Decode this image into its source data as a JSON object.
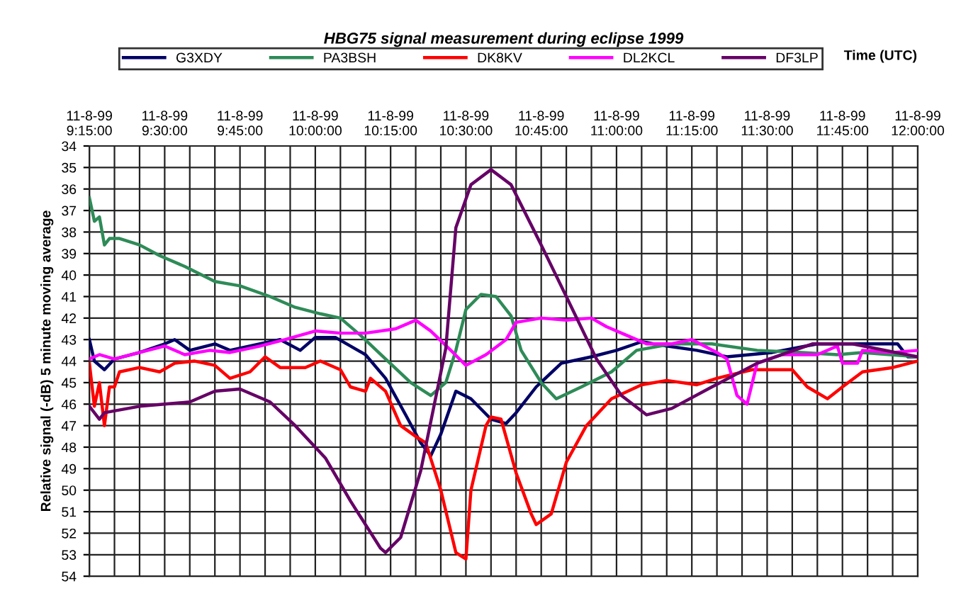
{
  "chart_data": {
    "type": "line",
    "title": "HBG75 signal measurement during eclipse 1999",
    "xlabel": "Time (UTC)",
    "ylabel": "Relative signal (-dB) 5 minute moving average",
    "xlim": [
      "1999-08-11T09:15",
      "1999-08-11T12:00"
    ],
    "ylim": [
      54,
      34
    ],
    "xticks": [
      {
        "value": "1999-08-11T09:15",
        "label": "11-8-99\n9:15:00"
      },
      {
        "value": "1999-08-11T09:20",
        "label": null
      },
      {
        "value": "1999-08-11T09:25",
        "label": null
      },
      {
        "value": "1999-08-11T09:30",
        "label": "11-8-99\n9:30:00"
      },
      {
        "value": "1999-08-11T09:35",
        "label": null
      },
      {
        "value": "1999-08-11T09:40",
        "label": null
      },
      {
        "value": "1999-08-11T09:45",
        "label": "11-8-99\n9:45:00"
      },
      {
        "value": "1999-08-11T09:50",
        "label": null
      },
      {
        "value": "1999-08-11T09:55",
        "label": null
      },
      {
        "value": "1999-08-11T10:00",
        "label": "11-8-99\n10:00:00"
      },
      {
        "value": "1999-08-11T10:05",
        "label": null
      },
      {
        "value": "1999-08-11T10:10",
        "label": null
      },
      {
        "value": "1999-08-11T10:15",
        "label": "11-8-99\n10:15:00"
      },
      {
        "value": "1999-08-11T10:20",
        "label": null
      },
      {
        "value": "1999-08-11T10:25",
        "label": null
      },
      {
        "value": "1999-08-11T10:30",
        "label": "11-8-99\n10:30:00"
      },
      {
        "value": "1999-08-11T10:35",
        "label": null
      },
      {
        "value": "1999-08-11T10:40",
        "label": null
      },
      {
        "value": "1999-08-11T10:45",
        "label": "11-8-99\n10:45:00"
      },
      {
        "value": "1999-08-11T10:50",
        "label": null
      },
      {
        "value": "1999-08-11T10:55",
        "label": null
      },
      {
        "value": "1999-08-11T11:00",
        "label": "11-8-99\n11:00:00"
      },
      {
        "value": "1999-08-11T11:05",
        "label": null
      },
      {
        "value": "1999-08-11T11:10",
        "label": null
      },
      {
        "value": "1999-08-11T11:15",
        "label": "11-8-99\n11:15:00"
      },
      {
        "value": "1999-08-11T11:20",
        "label": null
      },
      {
        "value": "1999-08-11T11:25",
        "label": null
      },
      {
        "value": "1999-08-11T11:30",
        "label": "11-8-99\n11:30:00"
      },
      {
        "value": "1999-08-11T11:35",
        "label": null
      },
      {
        "value": "1999-08-11T11:40",
        "label": null
      },
      {
        "value": "1999-08-11T11:45",
        "label": "11-8-99\n11:45:00"
      },
      {
        "value": "1999-08-11T11:50",
        "label": null
      },
      {
        "value": "1999-08-11T11:55",
        "label": null
      },
      {
        "value": "1999-08-11T12:00",
        "label": "11-8-99\n12:00:00"
      }
    ],
    "yticks": [
      34,
      35,
      36,
      37,
      38,
      39,
      40,
      41,
      42,
      43,
      44,
      45,
      46,
      47,
      48,
      49,
      50,
      51,
      52,
      53,
      54
    ],
    "grid": true,
    "legend": "top",
    "marker": "none",
    "line_style": "solid",
    "series": [
      {
        "name": "G3XDY",
        "color": "#000066",
        "x": [
          "1999-08-11T09:15",
          "1999-08-11T09:16",
          "1999-08-11T09:18",
          "1999-08-11T09:20",
          "1999-08-11T09:25",
          "1999-08-11T09:30",
          "1999-08-11T09:32",
          "1999-08-11T09:35",
          "1999-08-11T09:40",
          "1999-08-11T09:43",
          "1999-08-11T09:49",
          "1999-08-11T09:53",
          "1999-08-11T09:57",
          "1999-08-11T10:00",
          "1999-08-11T10:04",
          "1999-08-11T10:10",
          "1999-08-11T10:14",
          "1999-08-11T10:18",
          "1999-08-11T10:21",
          "1999-08-11T10:23",
          "1999-08-11T10:25",
          "1999-08-11T10:28",
          "1999-08-11T10:31",
          "1999-08-11T10:35",
          "1999-08-11T10:38",
          "1999-08-11T10:40",
          "1999-08-11T10:44",
          "1999-08-11T10:49",
          "1999-08-11T10:55",
          "1999-08-11T11:00",
          "1999-08-11T11:05",
          "1999-08-11T11:10",
          "1999-08-11T11:16",
          "1999-08-11T11:22",
          "1999-08-11T11:31",
          "1999-08-11T11:40",
          "1999-08-11T11:49",
          "1999-08-11T11:56",
          "1999-08-11T11:58",
          "1999-08-11T12:00"
        ],
        "values": [
          43,
          44,
          44.4,
          43.9,
          43.6,
          43.2,
          43.0,
          43.5,
          43.2,
          43.5,
          43.2,
          43.0,
          43.5,
          42.9,
          42.9,
          43.7,
          44.8,
          46.5,
          47.8,
          48.4,
          47.4,
          45.4,
          45.75,
          46.7,
          46.9,
          46.4,
          45.2,
          44.1,
          43.8,
          43.5,
          43.1,
          43.3,
          43.5,
          43.8,
          43.6,
          43.2,
          43.2,
          43.2,
          43.8,
          43.8
        ]
      },
      {
        "name": "PA3BSH",
        "color": "#2e8b57",
        "x": [
          "1999-08-11T09:15",
          "1999-08-11T09:16",
          "1999-08-11T09:17",
          "1999-08-11T09:18",
          "1999-08-11T09:19",
          "1999-08-11T09:21",
          "1999-08-11T09:25",
          "1999-08-11T09:29",
          "1999-08-11T09:34",
          "1999-08-11T09:40",
          "1999-08-11T09:45",
          "1999-08-11T09:51",
          "1999-08-11T09:56",
          "1999-08-11T10:01",
          "1999-08-11T10:05",
          "1999-08-11T10:09",
          "1999-08-11T10:14",
          "1999-08-11T10:19",
          "1999-08-11T10:23",
          "1999-08-11T10:26",
          "1999-08-11T10:28",
          "1999-08-11T10:30",
          "1999-08-11T10:33",
          "1999-08-11T10:36",
          "1999-08-11T10:39",
          "1999-08-11T10:41",
          "1999-08-11T10:45",
          "1999-08-11T10:48",
          "1999-08-11T10:53",
          "1999-08-11T10:59",
          "1999-08-11T11:04",
          "1999-08-11T11:11",
          "1999-08-11T11:19",
          "1999-08-11T11:28",
          "1999-08-11T11:37",
          "1999-08-11T11:44",
          "1999-08-11T11:49",
          "1999-08-11T12:00"
        ],
        "values": [
          36.4,
          37.5,
          37.3,
          38.6,
          38.3,
          38.3,
          38.6,
          39.1,
          39.6,
          40.3,
          40.5,
          41.0,
          41.5,
          41.8,
          42.0,
          42.8,
          43.9,
          45.0,
          45.6,
          45.0,
          43.5,
          41.6,
          40.9,
          41.0,
          41.9,
          43.5,
          45.0,
          45.75,
          45.2,
          44.5,
          43.5,
          43.2,
          43.2,
          43.5,
          43.6,
          43.7,
          43.6,
          43.8
        ]
      },
      {
        "name": "DK8KV",
        "color": "#ff0000",
        "x": [
          "1999-08-11T09:15",
          "1999-08-11T09:16",
          "1999-08-11T09:17",
          "1999-08-11T09:18",
          "1999-08-11T09:19",
          "1999-08-11T09:20",
          "1999-08-11T09:21",
          "1999-08-11T09:25",
          "1999-08-11T09:29",
          "1999-08-11T09:32",
          "1999-08-11T09:36",
          "1999-08-11T09:40",
          "1999-08-11T09:43",
          "1999-08-11T09:47",
          "1999-08-11T09:50",
          "1999-08-11T09:53",
          "1999-08-11T09:58",
          "1999-08-11T10:01",
          "1999-08-11T10:05",
          "1999-08-11T10:07",
          "1999-08-11T10:10",
          "1999-08-11T10:11",
          "1999-08-11T10:14",
          "1999-08-11T10:17",
          "1999-08-11T10:20",
          "1999-08-11T10:22",
          "1999-08-11T10:25",
          "1999-08-11T10:28",
          "1999-08-11T10:30",
          "1999-08-11T10:31",
          "1999-08-11T10:34",
          "1999-08-11T10:35",
          "1999-08-11T10:37",
          "1999-08-11T10:40",
          "1999-08-11T10:43",
          "1999-08-11T10:44",
          "1999-08-11T10:47",
          "1999-08-11T10:50",
          "1999-08-11T10:54",
          "1999-08-11T10:59",
          "1999-08-11T11:05",
          "1999-08-11T11:10",
          "1999-08-11T11:16",
          "1999-08-11T11:20",
          "1999-08-11T11:27",
          "1999-08-11T11:35",
          "1999-08-11T11:38",
          "1999-08-11T11:42",
          "1999-08-11T11:45",
          "1999-08-11T11:49",
          "1999-08-11T11:55",
          "1999-08-11T12:00"
        ],
        "values": [
          44.1,
          46.1,
          45.0,
          47,
          45.2,
          45.2,
          44.5,
          44.3,
          44.5,
          44.1,
          44.0,
          44.2,
          44.8,
          44.5,
          43.8,
          44.3,
          44.3,
          44.0,
          44.4,
          45.2,
          45.4,
          44.8,
          45.4,
          47.0,
          47.5,
          47.8,
          50.0,
          52.9,
          53.2,
          50.0,
          47.0,
          46.6,
          46.7,
          49.2,
          51.1,
          51.6,
          51.1,
          48.7,
          47.0,
          45.75,
          45.1,
          44.9,
          45.1,
          44.8,
          44.4,
          44.4,
          45.2,
          45.75,
          45.2,
          44.5,
          44.3,
          44.0
        ]
      },
      {
        "name": "DL2KCL",
        "color": "#ff00ff",
        "x": [
          "1999-08-11T09:15",
          "1999-08-11T09:17",
          "1999-08-11T09:20",
          "1999-08-11T09:25",
          "1999-08-11T09:30",
          "1999-08-11T09:34",
          "1999-08-11T09:39",
          "1999-08-11T09:43",
          "1999-08-11T09:49",
          "1999-08-11T09:54",
          "1999-08-11T10:00",
          "1999-08-11T10:05",
          "1999-08-11T10:10",
          "1999-08-11T10:16",
          "1999-08-11T10:20",
          "1999-08-11T10:23",
          "1999-08-11T10:27",
          "1999-08-11T10:30",
          "1999-08-11T10:34",
          "1999-08-11T10:38",
          "1999-08-11T10:40",
          "1999-08-11T10:45",
          "1999-08-11T10:50",
          "1999-08-11T10:55",
          "1999-08-11T10:58",
          "1999-08-11T11:02",
          "1999-08-11T11:06",
          "1999-08-11T11:11",
          "1999-08-11T11:15",
          "1999-08-11T11:20",
          "1999-08-11T11:22",
          "1999-08-11T11:24",
          "1999-08-11T11:26",
          "1999-08-11T11:28",
          "1999-08-11T11:33",
          "1999-08-11T11:40",
          "1999-08-11T11:44",
          "1999-08-11T11:45",
          "1999-08-11T11:48",
          "1999-08-11T11:49",
          "1999-08-11T11:55",
          "1999-08-11T12:00"
        ],
        "values": [
          43.9,
          43.7,
          43.9,
          43.6,
          43.3,
          43.7,
          43.5,
          43.6,
          43.3,
          43.0,
          42.6,
          42.7,
          42.7,
          42.5,
          42.1,
          42.6,
          43.5,
          44.2,
          43.7,
          43.0,
          42.2,
          42.0,
          42.1,
          42.0,
          42.4,
          42.8,
          43.2,
          43.2,
          43.0,
          43.6,
          43.9,
          45.6,
          46.0,
          44.1,
          43.7,
          43.7,
          43.3,
          44.1,
          44.1,
          43.5,
          43.6,
          43.5
        ]
      },
      {
        "name": "DF3LP",
        "color": "#660066",
        "x": [
          "1999-08-11T09:15",
          "1999-08-11T09:17",
          "1999-08-11T09:18",
          "1999-08-11T09:25",
          "1999-08-11T09:35",
          "1999-08-11T09:40",
          "1999-08-11T09:45",
          "1999-08-11T09:51",
          "1999-08-11T09:56",
          "1999-08-11T10:02",
          "1999-08-11T10:07",
          "1999-08-11T10:13",
          "1999-08-11T10:14",
          "1999-08-11T10:17",
          "1999-08-11T10:21",
          "1999-08-11T10:26",
          "1999-08-11T10:28",
          "1999-08-11T10:31",
          "1999-08-11T10:35",
          "1999-08-11T10:39",
          "1999-08-11T10:45",
          "1999-08-11T10:50",
          "1999-08-11T10:56",
          "1999-08-11T11:01",
          "1999-08-11T11:06",
          "1999-08-11T11:11",
          "1999-08-11T11:19",
          "1999-08-11T11:28",
          "1999-08-11T11:39",
          "1999-08-11T11:47",
          "1999-08-11T12:00"
        ],
        "values": [
          46.1,
          46.7,
          46.4,
          46.1,
          45.9,
          45.4,
          45.3,
          45.9,
          47.0,
          48.5,
          50.5,
          52.7,
          52.9,
          52.2,
          49.1,
          43.4,
          37.8,
          35.8,
          35.1,
          35.8,
          38.6,
          41.0,
          43.9,
          45.6,
          46.5,
          46.2,
          45.2,
          44.1,
          43.2,
          43.2,
          43.8
        ]
      }
    ]
  }
}
